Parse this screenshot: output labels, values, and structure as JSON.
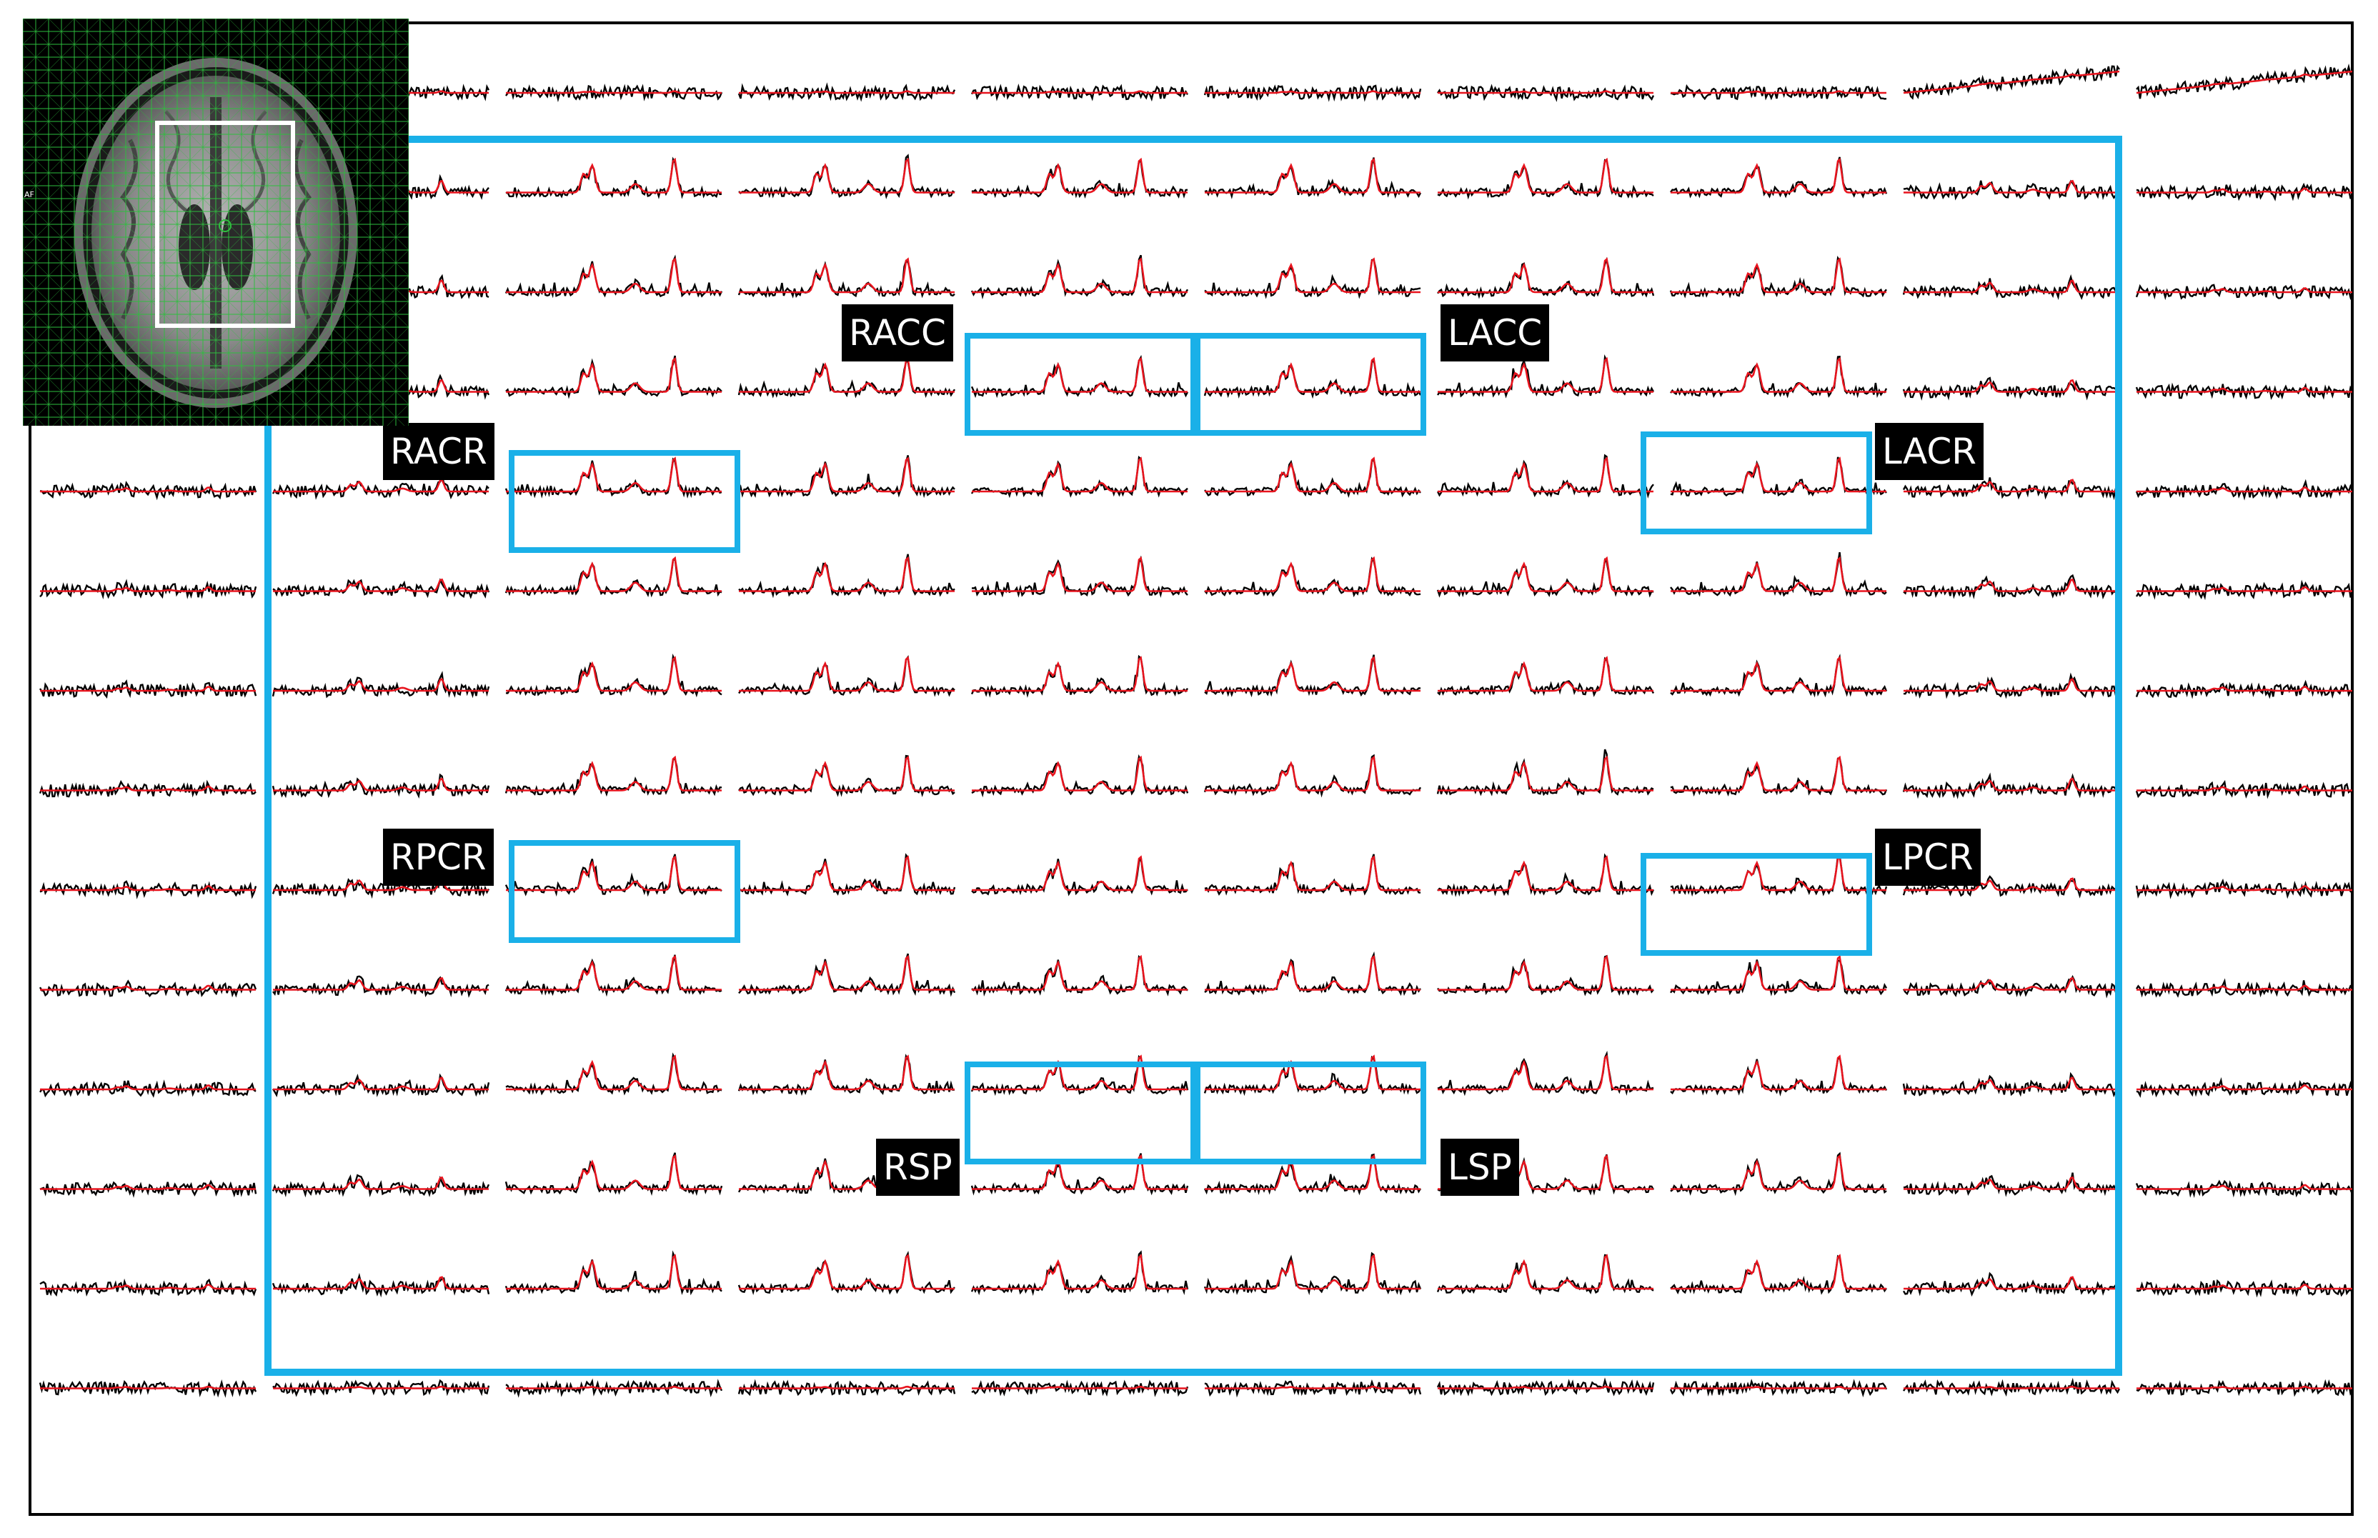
{
  "spectra_grid": {
    "rows": 14,
    "cols": 10
  },
  "trace_colors": {
    "measured": "#000000",
    "fitted": "#e8141e"
  },
  "roi_color": "#1ab0e8",
  "regions": [
    {
      "id": "racc",
      "label": "RACC"
    },
    {
      "id": "lacc",
      "label": "LACC"
    },
    {
      "id": "racr",
      "label": "RACR"
    },
    {
      "id": "lacr",
      "label": "LACR"
    },
    {
      "id": "rpcr",
      "label": "RPCR"
    },
    {
      "id": "lpcr",
      "label": "LPCR"
    },
    {
      "id": "rsp",
      "label": "RSP"
    },
    {
      "id": "lsp",
      "label": "LSP"
    }
  ],
  "inset": {
    "side_label": "AF",
    "grid_color": "#2fbf3f"
  }
}
